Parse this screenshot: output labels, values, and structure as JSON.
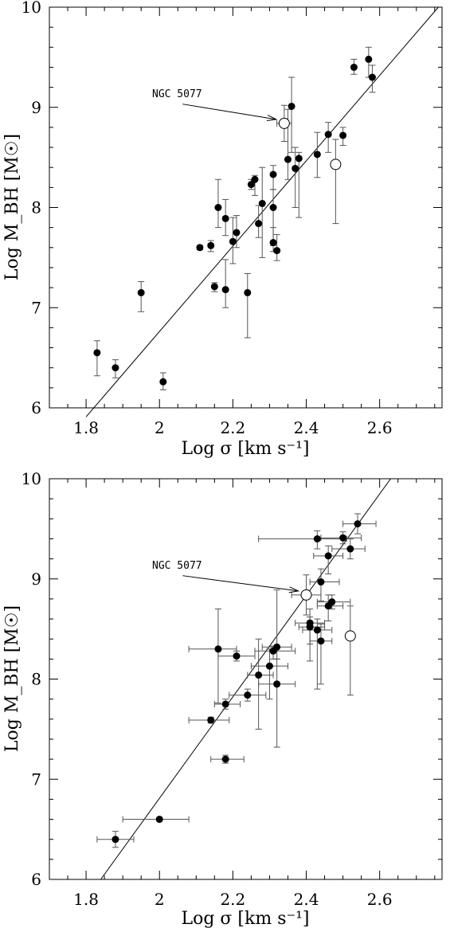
{
  "chart_data": [
    {
      "type": "scatter",
      "title": "",
      "xlabel": "Log σ [km s⁻¹]",
      "ylabel": "Log M_BH [M☉]",
      "xlim": [
        1.7,
        2.77
      ],
      "ylim": [
        6,
        10
      ],
      "xticks": [
        "1.8",
        "2",
        "2.2",
        "2.4",
        "2.6"
      ],
      "yticks": [
        "6",
        "7",
        "8",
        "9",
        "10"
      ],
      "annotation": "NGC 5077",
      "fit_line": [
        [
          1.8,
          5.91
        ],
        [
          2.76,
          10.0
        ]
      ],
      "points": [
        {
          "x": 1.83,
          "y": 6.55,
          "ylo": 6.32,
          "yhi": 6.67
        },
        {
          "x": 1.88,
          "y": 6.4,
          "ylo": 6.3,
          "yhi": 6.48
        },
        {
          "x": 1.95,
          "y": 7.15,
          "ylo": 6.96,
          "yhi": 7.26
        },
        {
          "x": 2.01,
          "y": 6.26,
          "ylo": 6.18,
          "yhi": 6.35
        },
        {
          "x": 2.11,
          "y": 7.6,
          "ylo": 7.58,
          "yhi": 7.62
        },
        {
          "x": 2.14,
          "y": 7.62,
          "ylo": 7.56,
          "yhi": 7.67
        },
        {
          "x": 2.15,
          "y": 7.21,
          "ylo": 7.16,
          "yhi": 7.25
        },
        {
          "x": 2.16,
          "y": 8.0,
          "ylo": 7.8,
          "yhi": 8.28
        },
        {
          "x": 2.18,
          "y": 7.18,
          "ylo": 7.0,
          "yhi": 7.48
        },
        {
          "x": 2.18,
          "y": 7.89,
          "ylo": 7.72,
          "yhi": 8.08
        },
        {
          "x": 2.2,
          "y": 7.66,
          "ylo": 7.44,
          "yhi": 7.9
        },
        {
          "x": 2.21,
          "y": 7.75,
          "ylo": 7.6,
          "yhi": 7.92
        },
        {
          "x": 2.24,
          "y": 7.15,
          "ylo": 6.7,
          "yhi": 7.34
        },
        {
          "x": 2.25,
          "y": 8.23,
          "ylo": 8.18,
          "yhi": 8.28
        },
        {
          "x": 2.26,
          "y": 8.28,
          "ylo": 8.12,
          "yhi": 8.32
        },
        {
          "x": 2.27,
          "y": 7.84,
          "ylo": 7.7,
          "yhi": 8.02
        },
        {
          "x": 2.28,
          "y": 8.04,
          "ylo": 7.5,
          "yhi": 8.4
        },
        {
          "x": 2.31,
          "y": 8.33,
          "ylo": 8.18,
          "yhi": 8.42
        },
        {
          "x": 2.31,
          "y": 8.0,
          "ylo": 7.62,
          "yhi": 8.18
        },
        {
          "x": 2.31,
          "y": 7.65,
          "ylo": 7.56,
          "yhi": 7.8
        },
        {
          "x": 2.32,
          "y": 7.57,
          "ylo": 7.47,
          "yhi": 7.73
        },
        {
          "x": 2.35,
          "y": 8.48,
          "ylo": 8.28,
          "yhi": 8.98
        },
        {
          "x": 2.36,
          "y": 9.01,
          "ylo": 8.55,
          "yhi": 9.3
        },
        {
          "x": 2.37,
          "y": 8.39,
          "ylo": 8.0,
          "yhi": 8.6
        },
        {
          "x": 2.38,
          "y": 8.49,
          "ylo": 7.9,
          "yhi": 8.55
        },
        {
          "x": 2.43,
          "y": 8.53,
          "ylo": 8.3,
          "yhi": 8.75
        },
        {
          "x": 2.46,
          "y": 8.73,
          "ylo": 8.55,
          "yhi": 8.85
        },
        {
          "x": 2.5,
          "y": 8.72,
          "ylo": 8.62,
          "yhi": 8.8
        },
        {
          "x": 2.53,
          "y": 9.4,
          "ylo": 9.33,
          "yhi": 9.48
        },
        {
          "x": 2.57,
          "y": 9.48,
          "ylo": 9.3,
          "yhi": 9.6
        },
        {
          "x": 2.58,
          "y": 9.3,
          "ylo": 9.15,
          "yhi": 9.42
        }
      ],
      "open_points": [
        {
          "x": 2.34,
          "y": 8.84,
          "ylo": 8.66,
          "yhi": 9.02,
          "xlo": 2.32,
          "xhi": 2.36
        },
        {
          "x": 2.48,
          "y": 8.43,
          "ylo": 7.84,
          "yhi": 8.68,
          "xlo": 2.47,
          "xhi": 2.49
        }
      ],
      "labeled_point_index": 0
    },
    {
      "type": "scatter",
      "title": "",
      "xlabel": "Log σ [km s⁻¹]",
      "ylabel": "Log M_BH [M☉]",
      "xlim": [
        1.7,
        2.77
      ],
      "ylim": [
        6,
        10
      ],
      "xticks": [
        "1.8",
        "2",
        "2.2",
        "2.4",
        "2.6"
      ],
      "yticks": [
        "6",
        "7",
        "8",
        "9",
        "10"
      ],
      "annotation": "NGC 5077",
      "fit_line": [
        [
          1.84,
          6.0
        ],
        [
          2.63,
          10.0
        ]
      ],
      "points": [
        {
          "x": 1.88,
          "y": 6.4,
          "ylo": 6.32,
          "yhi": 6.48,
          "xlo": 1.83,
          "xhi": 1.93
        },
        {
          "x": 2.0,
          "y": 6.6,
          "ylo": 6.58,
          "yhi": 6.62,
          "xlo": 1.9,
          "xhi": 2.08
        },
        {
          "x": 2.14,
          "y": 7.59,
          "ylo": 7.56,
          "yhi": 7.62,
          "xlo": 2.08,
          "xhi": 2.19
        },
        {
          "x": 2.16,
          "y": 8.3,
          "ylo": 7.76,
          "yhi": 8.7,
          "xlo": 2.08,
          "xhi": 2.21
        },
        {
          "x": 2.18,
          "y": 7.2,
          "ylo": 7.16,
          "yhi": 7.24,
          "xlo": 2.14,
          "xhi": 2.23
        },
        {
          "x": 2.18,
          "y": 7.75,
          "ylo": 7.7,
          "yhi": 7.8,
          "xlo": 2.15,
          "xhi": 2.22
        },
        {
          "x": 2.21,
          "y": 8.23,
          "ylo": 8.18,
          "yhi": 8.28,
          "xlo": 2.16,
          "xhi": 2.26
        },
        {
          "x": 2.24,
          "y": 7.84,
          "ylo": 7.78,
          "yhi": 7.9,
          "xlo": 2.19,
          "xhi": 2.29
        },
        {
          "x": 2.27,
          "y": 8.04,
          "ylo": 7.5,
          "yhi": 8.4,
          "xlo": 2.24,
          "xhi": 2.31
        },
        {
          "x": 2.3,
          "y": 8.13,
          "ylo": 7.8,
          "yhi": 8.3,
          "xlo": 2.25,
          "xhi": 2.35
        },
        {
          "x": 2.31,
          "y": 8.28,
          "ylo": 8.2,
          "yhi": 8.33,
          "xlo": 2.26,
          "xhi": 2.37
        },
        {
          "x": 2.32,
          "y": 7.95,
          "ylo": 7.32,
          "yhi": 8.2,
          "xlo": 2.27,
          "xhi": 2.37
        },
        {
          "x": 2.32,
          "y": 8.32,
          "ylo": 8.2,
          "yhi": 8.89,
          "xlo": 2.28,
          "xhi": 2.36
        },
        {
          "x": 2.41,
          "y": 8.56,
          "ylo": 8.35,
          "yhi": 8.7,
          "xlo": 2.37,
          "xhi": 2.45
        },
        {
          "x": 2.41,
          "y": 8.52,
          "ylo": 8.18,
          "yhi": 8.62,
          "xlo": 2.38,
          "xhi": 2.45
        },
        {
          "x": 2.43,
          "y": 8.49,
          "ylo": 7.9,
          "yhi": 8.6,
          "xlo": 2.39,
          "xhi": 2.47
        },
        {
          "x": 2.43,
          "y": 9.4,
          "ylo": 9.3,
          "yhi": 9.48,
          "xlo": 2.27,
          "xhi": 2.51
        },
        {
          "x": 2.44,
          "y": 8.38,
          "ylo": 7.95,
          "yhi": 8.55,
          "xlo": 2.41,
          "xhi": 2.47
        },
        {
          "x": 2.44,
          "y": 8.97,
          "ylo": 8.78,
          "yhi": 9.1,
          "xlo": 2.41,
          "xhi": 2.49
        },
        {
          "x": 2.46,
          "y": 9.23,
          "ylo": 9.05,
          "yhi": 9.33,
          "xlo": 2.42,
          "xhi": 2.5
        },
        {
          "x": 2.46,
          "y": 8.73,
          "ylo": 8.58,
          "yhi": 8.84,
          "xlo": 2.43,
          "xhi": 2.5
        },
        {
          "x": 2.47,
          "y": 8.77,
          "ylo": 8.7,
          "yhi": 8.84,
          "xlo": 2.43,
          "xhi": 2.52
        },
        {
          "x": 2.5,
          "y": 9.41,
          "ylo": 9.35,
          "yhi": 9.47,
          "xlo": 2.44,
          "xhi": 2.55
        },
        {
          "x": 2.52,
          "y": 9.3,
          "ylo": 9.2,
          "yhi": 9.4,
          "xlo": 2.47,
          "xhi": 2.56
        },
        {
          "x": 2.54,
          "y": 9.55,
          "ylo": 9.45,
          "yhi": 9.65,
          "xlo": 2.5,
          "xhi": 2.59
        }
      ],
      "open_points": [
        {
          "x": 2.4,
          "y": 8.84,
          "ylo": 8.64,
          "yhi": 9.04,
          "xlo": 2.36,
          "xhi": 2.44
        },
        {
          "x": 2.52,
          "y": 8.43,
          "ylo": 7.84,
          "yhi": 8.73,
          "xlo": 2.51,
          "xhi": 2.53
        }
      ],
      "labeled_point_index": 0
    }
  ]
}
